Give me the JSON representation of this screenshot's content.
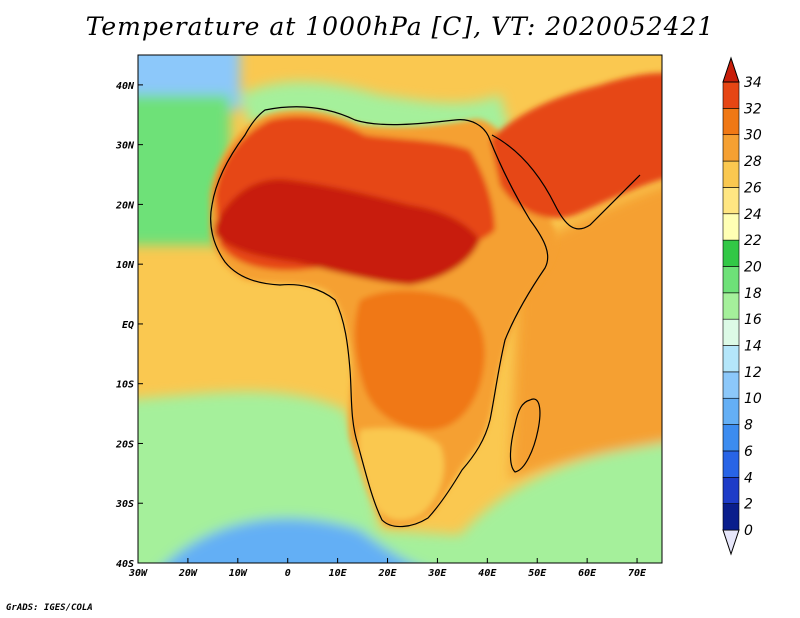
{
  "title": "Temperature at 1000hPa [C], VT: 2020052421",
  "credit": "GrADS: IGES/COLA",
  "map": {
    "lon_range": [
      -30,
      75
    ],
    "lat_range": [
      -40,
      45
    ],
    "lon_ticks": [
      {
        "value": -30,
        "label": "30W"
      },
      {
        "value": -20,
        "label": "20W"
      },
      {
        "value": -10,
        "label": "10W"
      },
      {
        "value": 0,
        "label": "0"
      },
      {
        "value": 10,
        "label": "10E"
      },
      {
        "value": 20,
        "label": "20E"
      },
      {
        "value": 30,
        "label": "30E"
      },
      {
        "value": 40,
        "label": "40E"
      },
      {
        "value": 50,
        "label": "50E"
      },
      {
        "value": 60,
        "label": "60E"
      },
      {
        "value": 70,
        "label": "70E"
      }
    ],
    "lat_ticks": [
      {
        "value": 40,
        "label": "40N"
      },
      {
        "value": 30,
        "label": "30N"
      },
      {
        "value": 20,
        "label": "20N"
      },
      {
        "value": 10,
        "label": "10N"
      },
      {
        "value": 0,
        "label": "EQ"
      },
      {
        "value": -10,
        "label": "10S"
      },
      {
        "value": -20,
        "label": "20S"
      },
      {
        "value": -30,
        "label": "30S"
      },
      {
        "value": -40,
        "label": "40S"
      }
    ]
  },
  "colorbar": {
    "levels": [
      0,
      2,
      4,
      6,
      8,
      10,
      12,
      14,
      16,
      18,
      20,
      22,
      24,
      26,
      28,
      30,
      32,
      34
    ],
    "colors": [
      "#e6e6fa",
      "#0a1e8c",
      "#1e3cc8",
      "#2864e6",
      "#3c8cf0",
      "#64aff5",
      "#8cc8fa",
      "#b4e6fa",
      "#dcfae6",
      "#a5f09b",
      "#6ee178",
      "#32c846",
      "#ffffb4",
      "#ffe682",
      "#fac850",
      "#f5a032",
      "#f07814",
      "#e64614",
      "#c81e0a"
    ]
  },
  "regions": {
    "atlantic_north": "#8cc8fa",
    "subtropical_atlantic": "#6ee178",
    "tropical_ocean": "#fac850",
    "southern_ocean": "#a5f09b",
    "cold_south": "#64aff5",
    "mediterranean": "#a5f09b",
    "indian_ocean": "#f5a032",
    "land_base": "#f5a032",
    "sahara_hot": "#e64614",
    "sahel_hot": "#c81e0a",
    "arabia_hot": "#e64614",
    "central_africa": "#f07814",
    "southern_africa": "#fac850"
  }
}
